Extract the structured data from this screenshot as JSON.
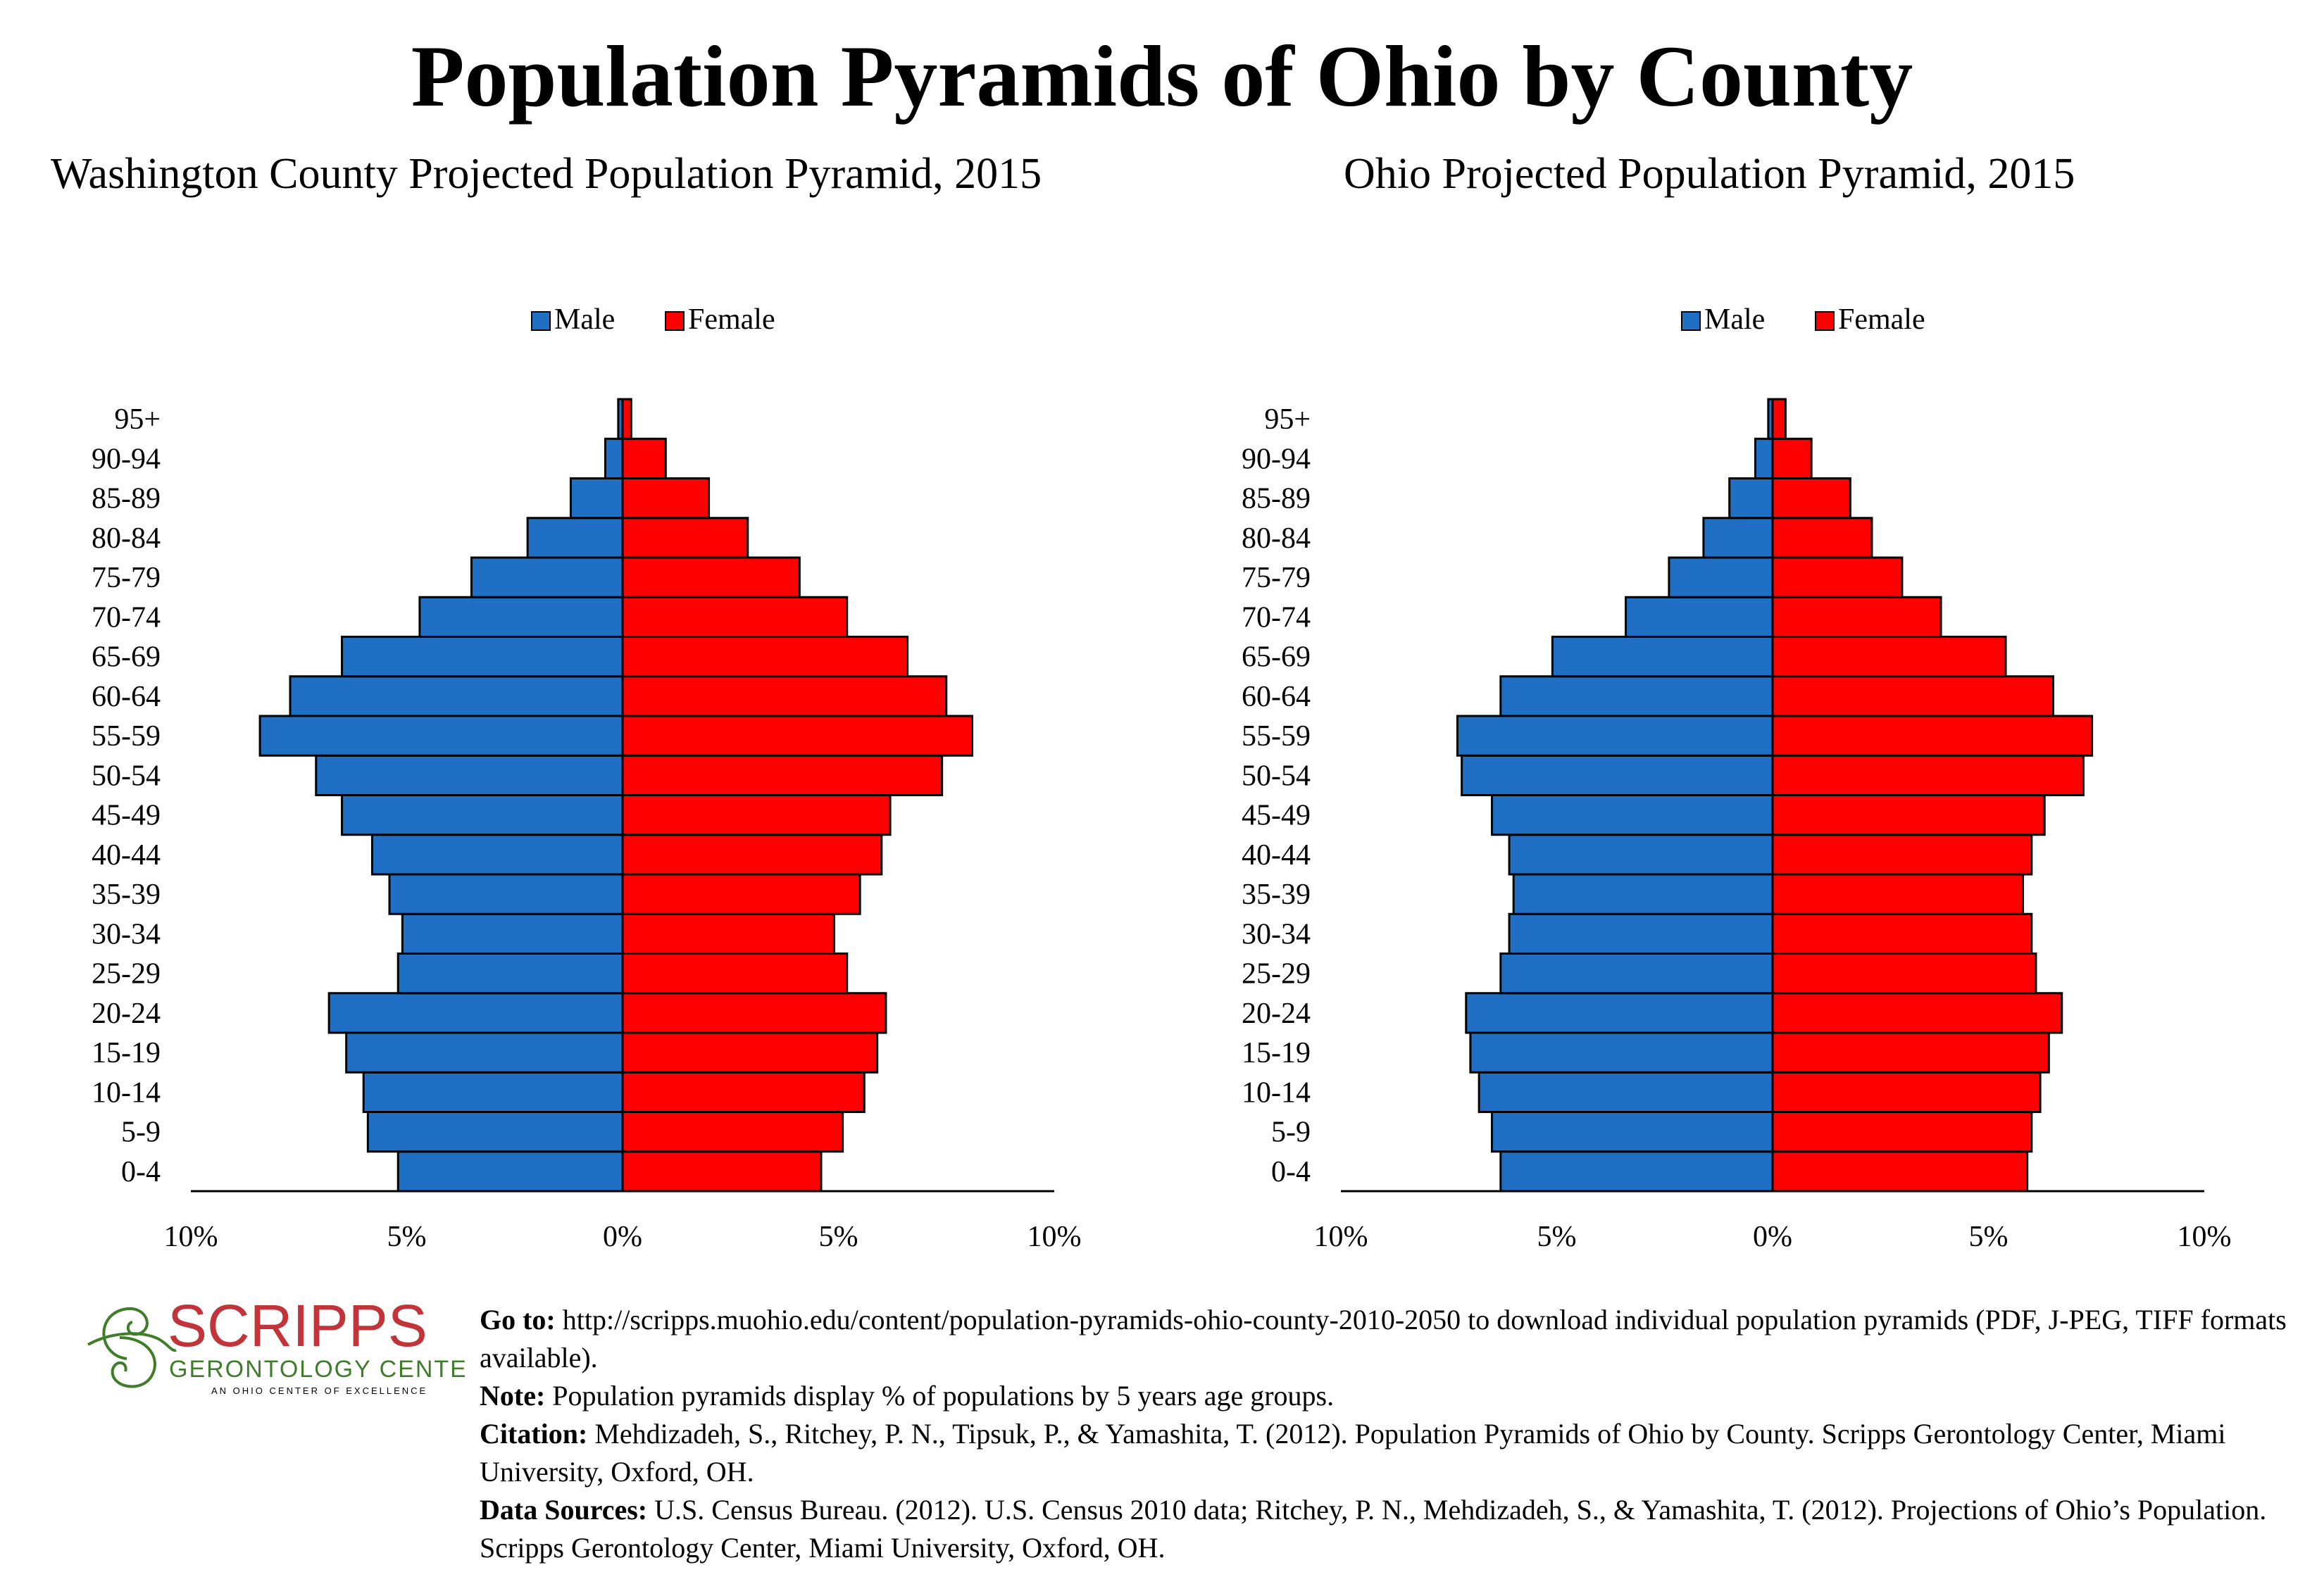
{
  "title": "Population Pyramids of Ohio by County",
  "chart_data": [
    {
      "type": "bar",
      "orientation": "horizontal-pyramid",
      "title": "Washington County Projected Population Pyramid, 2015",
      "categories": [
        "0-4",
        "5-9",
        "10-14",
        "15-19",
        "20-24",
        "25-29",
        "30-34",
        "35-39",
        "40-44",
        "45-49",
        "50-54",
        "55-59",
        "60-64",
        "65-69",
        "70-74",
        "75-79",
        "80-84",
        "85-89",
        "90-94",
        "95+"
      ],
      "series": [
        {
          "name": "Male",
          "color": "#1F6FC5",
          "values": [
            5.2,
            5.9,
            6.0,
            6.4,
            6.8,
            5.2,
            5.1,
            5.4,
            5.8,
            6.5,
            7.1,
            8.4,
            7.7,
            6.5,
            4.7,
            3.5,
            2.2,
            1.2,
            0.4,
            0.1
          ]
        },
        {
          "name": "Female",
          "color": "#FF0000",
          "values": [
            4.6,
            5.1,
            5.6,
            5.9,
            6.1,
            5.2,
            4.9,
            5.5,
            6.0,
            6.2,
            7.4,
            8.1,
            7.5,
            6.6,
            5.2,
            4.1,
            2.9,
            2.0,
            1.0,
            0.2
          ]
        }
      ],
      "xticks": [
        "10%",
        "5%",
        "0%",
        "5%",
        "10%"
      ],
      "xlim": [
        -10,
        10
      ],
      "legend": "top-center",
      "grid": false
    },
    {
      "type": "bar",
      "orientation": "horizontal-pyramid",
      "title": "Ohio Projected Population Pyramid, 2015",
      "categories": [
        "0-4",
        "5-9",
        "10-14",
        "15-19",
        "20-24",
        "25-29",
        "30-34",
        "35-39",
        "40-44",
        "45-49",
        "50-54",
        "55-59",
        "60-64",
        "65-69",
        "70-74",
        "75-79",
        "80-84",
        "85-89",
        "90-94",
        "95+"
      ],
      "series": [
        {
          "name": "Male",
          "color": "#1F6FC5",
          "values": [
            6.3,
            6.5,
            6.8,
            7.0,
            7.1,
            6.3,
            6.1,
            6.0,
            6.1,
            6.5,
            7.2,
            7.3,
            6.3,
            5.1,
            3.4,
            2.4,
            1.6,
            1.0,
            0.4,
            0.1
          ]
        },
        {
          "name": "Female",
          "color": "#FF0000",
          "values": [
            5.9,
            6.0,
            6.2,
            6.4,
            6.7,
            6.1,
            6.0,
            5.8,
            6.0,
            6.3,
            7.2,
            7.4,
            6.5,
            5.4,
            3.9,
            3.0,
            2.3,
            1.8,
            0.9,
            0.3
          ]
        }
      ],
      "xticks": [
        "10%",
        "5%",
        "0%",
        "5%",
        "10%"
      ],
      "xlim": [
        -10,
        10
      ],
      "legend": "top-center",
      "grid": false
    }
  ],
  "logo": {
    "name": "SCRIPPS",
    "line2": "GERONTOLOGY CENTER",
    "line3": "AN OHIO CENTER OF EXCELLENCE",
    "red": "#C0343A",
    "green": "#3F7D2A"
  },
  "notes": [
    {
      "label": "Go to:",
      "text": " http://scripps.muohio.edu/content/population-pyramids-ohio-county-2010-2050 to download individual population pyramids (PDF, J-PEG, TIFF formats available)."
    },
    {
      "label": "Note:",
      "text": " Population pyramids display % of populations by 5 years age groups."
    },
    {
      "label": "Citation:",
      "text": " Mehdizadeh, S., Ritchey, P. N., Tipsuk, P., & Yamashita, T. (2012). Population Pyramids of Ohio by County. Scripps Gerontology Center, Miami University, Oxford, OH."
    },
    {
      "label": "Data Sources:",
      "text": " U.S. Census Bureau. (2012). U.S. Census 2010 data; Ritchey, P. N., Mehdizadeh, S., & Yamashita, T. (2012). Projections of Ohio’s Population. Scripps Gerontology Center, Miami University, Oxford, OH."
    }
  ]
}
